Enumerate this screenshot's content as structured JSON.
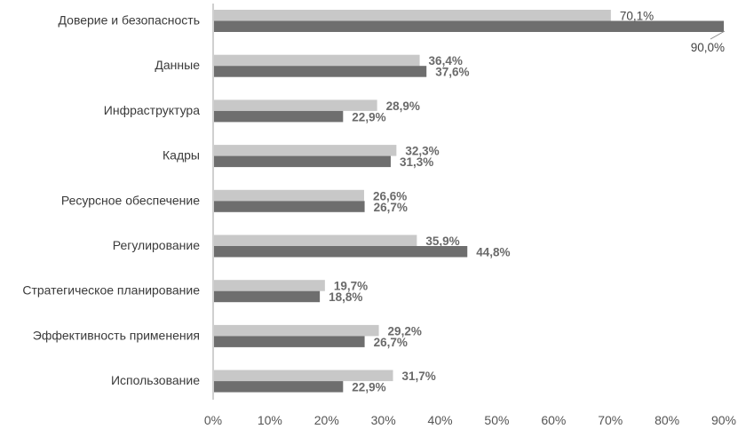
{
  "chart_data": {
    "type": "bar",
    "orientation": "horizontal",
    "categories": [
      "Доверие и безопасность",
      "Данные",
      "Инфраструктура",
      "Кадры",
      "Ресурсное обеспечение",
      "Регулирование",
      "Стратегическое планирование",
      "Эффективность применения",
      "Использование"
    ],
    "series": [
      {
        "color": "#c8c8c8",
        "values": [
          70.1,
          36.4,
          28.9,
          32.3,
          26.6,
          35.9,
          19.7,
          29.2,
          31.7
        ],
        "labels": [
          "70,1%",
          "36,4%",
          "28,9%",
          "32,3%",
          "26,6%",
          "35,9%",
          "19,7%",
          "29,2%",
          "31,7%"
        ]
      },
      {
        "color": "#6e6e6e",
        "values": [
          90.0,
          37.6,
          22.9,
          31.3,
          26.7,
          44.8,
          18.8,
          26.7,
          22.9
        ],
        "labels": [
          "90,0%",
          "37,6%",
          "22,9%",
          "31,3%",
          "26,7%",
          "44,8%",
          "18,8%",
          "26,7%",
          "22,9%"
        ]
      }
    ],
    "x_ticks": [
      "0%",
      "10%",
      "20%",
      "30%",
      "40%",
      "50%",
      "60%",
      "70%",
      "80%",
      "90%"
    ],
    "xlim": [
      0,
      90
    ],
    "grid": false,
    "legend": "none",
    "title": "",
    "xlabel": "",
    "ylabel": ""
  }
}
